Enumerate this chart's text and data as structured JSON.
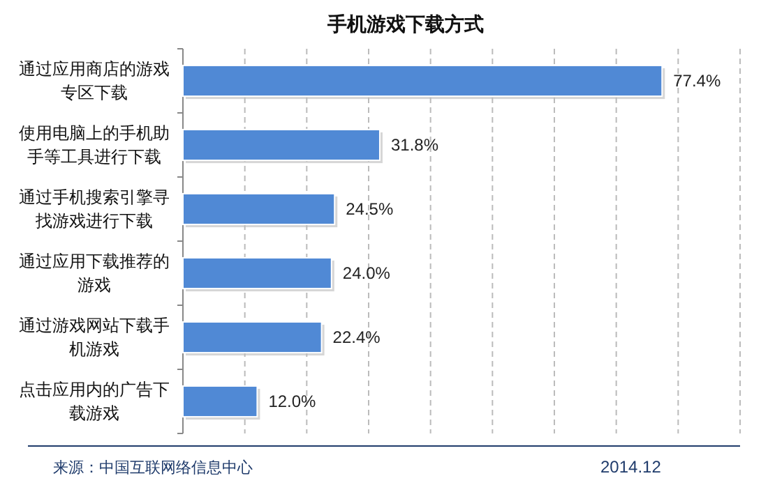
{
  "chart_data": {
    "type": "bar",
    "orientation": "horizontal",
    "title": "手机游戏下载方式",
    "categories": [
      "通过应用商店的游戏专区下载",
      "使用电脑上的手机助手等工具进行下载",
      "通过手机搜索引擎寻找游戏进行下载",
      "通过应用下载推荐的游戏",
      "通过游戏网站下载手机游戏",
      "点击应用内的广告下载游戏"
    ],
    "values": [
      77.4,
      31.8,
      24.5,
      24.0,
      22.4,
      12.0
    ],
    "value_labels": [
      "77.4%",
      "31.8%",
      "24.5%",
      "24.0%",
      "22.4%",
      "12.0%"
    ],
    "color": "#5089d5",
    "xlim": [
      0,
      90
    ],
    "xticks": [
      {
        "value": 0,
        "label": null
      },
      {
        "value": 10,
        "label": null
      },
      {
        "value": 20,
        "label": null
      },
      {
        "value": 30,
        "label": null
      },
      {
        "value": 40,
        "label": null
      },
      {
        "value": 50,
        "label": null
      },
      {
        "value": 60,
        "label": null
      },
      {
        "value": 70,
        "label": null
      },
      {
        "value": 80,
        "label": null
      },
      {
        "value": 90,
        "label": null
      }
    ],
    "grid": "x",
    "tick_labels": "y",
    "annotations": [
      "来源：中国互联网络信息中心",
      "2014.12"
    ]
  }
}
